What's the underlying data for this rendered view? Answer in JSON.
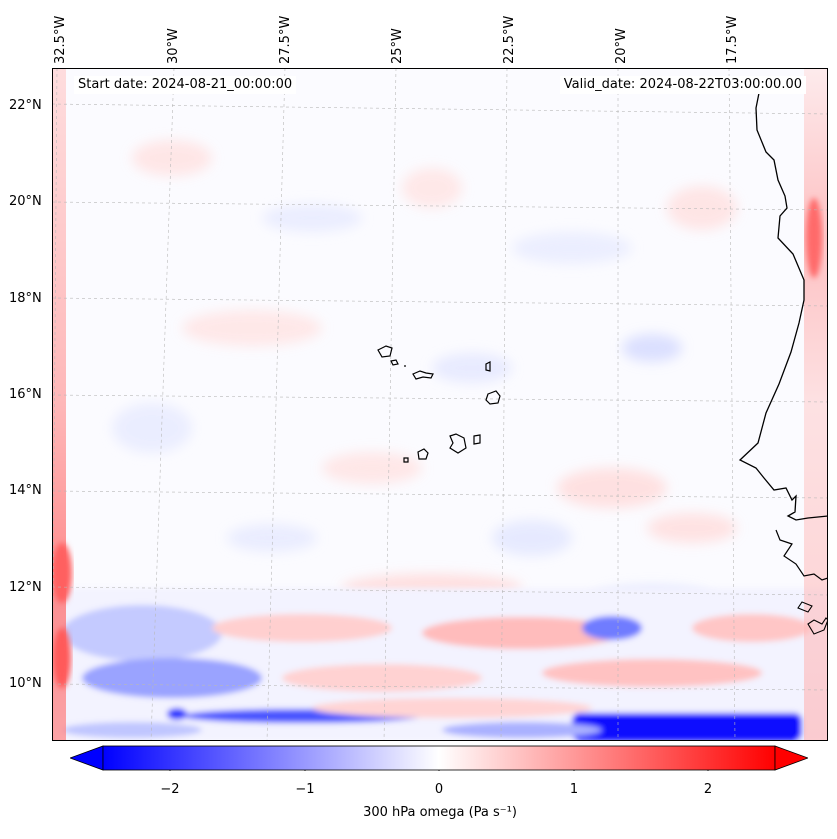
{
  "header": {
    "start_date": "Start date: 2024-08-21_00:00:00",
    "valid_date": "Valid_date: 2024-08-22T03:00:00.00"
  },
  "axes": {
    "lon_labels": [
      "32.5°W",
      "30°W",
      "27.5°W",
      "25°W",
      "22.5°W",
      "20°W",
      "17.5°W"
    ],
    "lat_labels": [
      "22°N",
      "20°N",
      "18°N",
      "16°N",
      "14°N",
      "12°N",
      "10°N"
    ]
  },
  "colorbar": {
    "label": "300 hPa omega (Pa s⁻¹)",
    "ticks": [
      "−2",
      "−1",
      "0",
      "1",
      "2"
    ],
    "range": [
      -2.5,
      2.5
    ],
    "colormap": "bwr",
    "extend": "both"
  },
  "colors": {
    "negative": "#0000ff",
    "neutral": "#ffffff",
    "positive": "#ff0000",
    "coastline": "#000000",
    "grid": "#b0b0b0"
  }
}
